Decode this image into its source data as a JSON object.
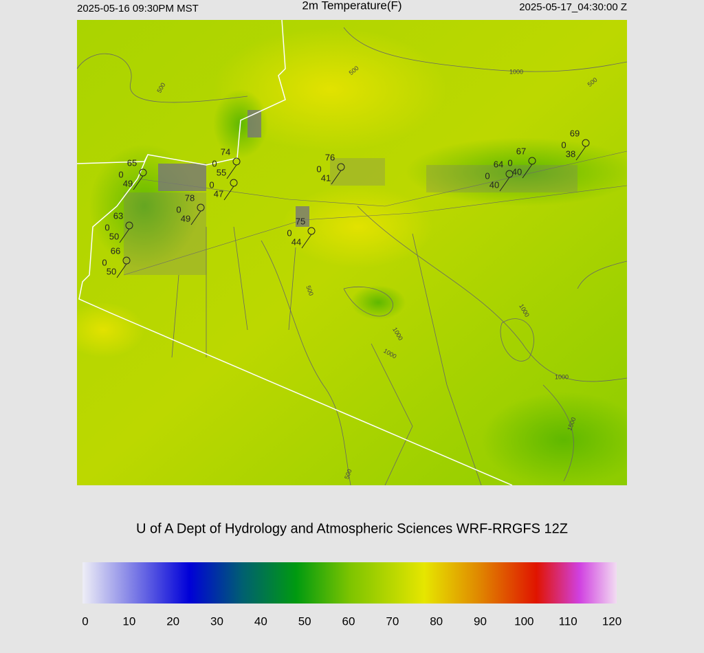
{
  "header": {
    "left": "2025-05-16 09:30PM MST",
    "title": "2m Temperature(F)",
    "right": "2025-05-17_04:30:00 Z"
  },
  "stations": [
    {
      "temp": 65,
      "zero": 0,
      "dew": 49
    },
    {
      "temp": 74,
      "zero": 0,
      "dew": 55
    },
    {
      "zero": 0,
      "dew": 47
    },
    {
      "temp": 78,
      "zero": 0,
      "dew": 49
    },
    {
      "temp": 76,
      "zero": 0,
      "dew": 41
    },
    {
      "temp": 75,
      "zero": 0,
      "dew": 44
    },
    {
      "temp": 63,
      "zero": 0,
      "dew": 50
    },
    {
      "temp": 66,
      "zero": 0,
      "dew": 50
    },
    {
      "temp": 69,
      "zero": 0,
      "dew": 38
    },
    {
      "temp": 67,
      "zero": 0,
      "dew": 40
    },
    {
      "temp": 64,
      "zero": 0,
      "dew": 40
    }
  ],
  "contour_labels": [
    "500",
    "500",
    "500",
    "1000",
    "500",
    "1000",
    "1000",
    "1000",
    "1000",
    "1500",
    "500"
  ],
  "footer": "U of A Dept of Hydrology and Atmospheric Sciences WRF-RRGFS 12Z",
  "colorbar": {
    "range": [
      0,
      120
    ],
    "ticks": [
      0,
      10,
      20,
      30,
      40,
      50,
      60,
      70,
      80,
      90,
      100,
      110,
      120
    ]
  }
}
